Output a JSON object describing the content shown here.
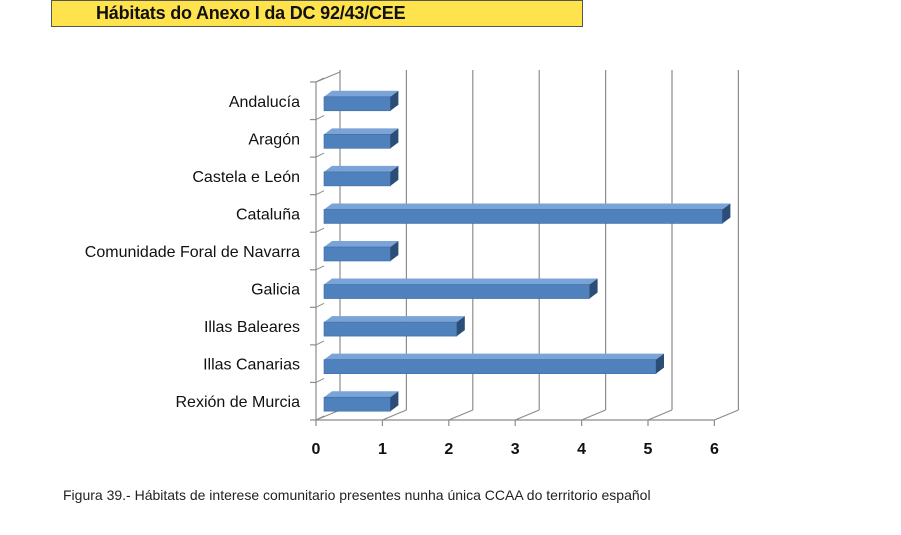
{
  "header": {
    "title": "Hábitats do Anexo I da DC 92/43/CEE"
  },
  "caption": "Figura 39.- Hábitats de interese comunitario presentes nunha única CCAA do territorio español",
  "colors": {
    "bar_front": "#4f81bd",
    "bar_top": "#7aa3d8",
    "bar_side": "#2c4d75",
    "title_bg": "#ffe34d"
  },
  "chart_data": {
    "type": "bar",
    "orientation": "horizontal",
    "categories": [
      "Andalucía",
      "Aragón",
      "Castela e León",
      "Cataluña",
      "Comunidade Foral de Navarra",
      "Galicia",
      "Illas Baleares",
      "Illas Canarias",
      "Rexión de Murcia"
    ],
    "values": [
      1,
      1,
      1,
      6,
      1,
      4,
      2,
      5,
      1
    ],
    "xlim": [
      0,
      6
    ],
    "xticks": [
      "0",
      "1",
      "2",
      "3",
      "4",
      "5",
      "6"
    ],
    "grid": true,
    "legend": "none"
  }
}
